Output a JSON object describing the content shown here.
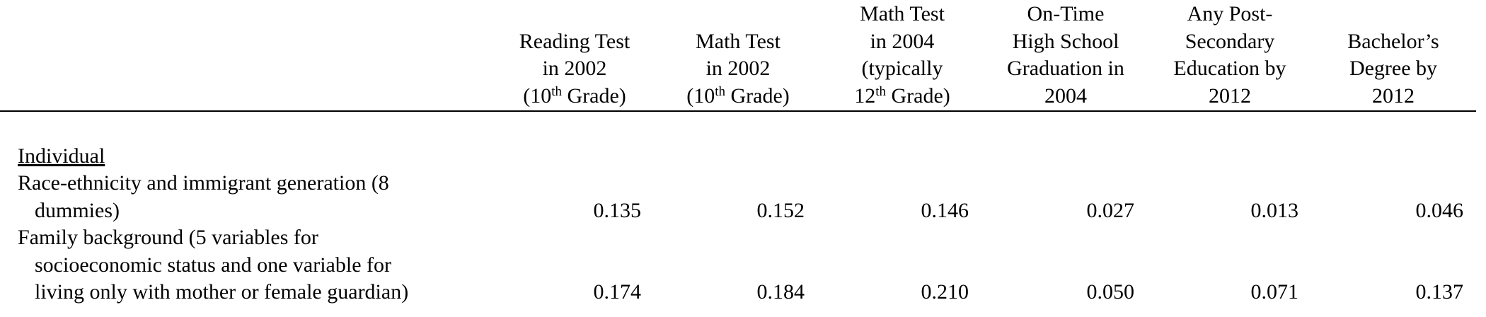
{
  "table": {
    "columns": [
      {
        "lines": [
          [
            "Reading Test"
          ],
          [
            "in 2002"
          ],
          [
            "(10",
            "th",
            " Grade)"
          ]
        ]
      },
      {
        "lines": [
          [
            "Math Test"
          ],
          [
            "in 2002"
          ],
          [
            "(10",
            "th",
            " Grade)"
          ]
        ]
      },
      {
        "lines": [
          [
            "Math Test"
          ],
          [
            "in 2004"
          ],
          [
            "(typically"
          ],
          [
            "12",
            "th",
            " Grade)"
          ]
        ]
      },
      {
        "lines": [
          [
            "On-Time"
          ],
          [
            "High School"
          ],
          [
            "Graduation in"
          ],
          [
            "2004"
          ]
        ]
      },
      {
        "lines": [
          [
            "Any Post-"
          ],
          [
            "Secondary"
          ],
          [
            "Education by"
          ],
          [
            "2012"
          ]
        ]
      },
      {
        "lines": [
          [
            "Bachelor’s"
          ],
          [
            "Degree by"
          ],
          [
            "2012"
          ]
        ]
      }
    ],
    "section": "Individual",
    "rows": [
      {
        "label": [
          "Race-ethnicity and immigrant generation (8",
          "dummies)"
        ],
        "values": [
          "0.135",
          "0.152",
          "0.146",
          "0.027",
          "0.013",
          "0.046"
        ]
      },
      {
        "label": [
          "Family background (5 variables for",
          "socioeconomic status and one variable for",
          "living only with mother or female guardian)"
        ],
        "values": [
          "0.174",
          "0.184",
          "0.210",
          "0.050",
          "0.071",
          "0.137"
        ]
      }
    ]
  }
}
